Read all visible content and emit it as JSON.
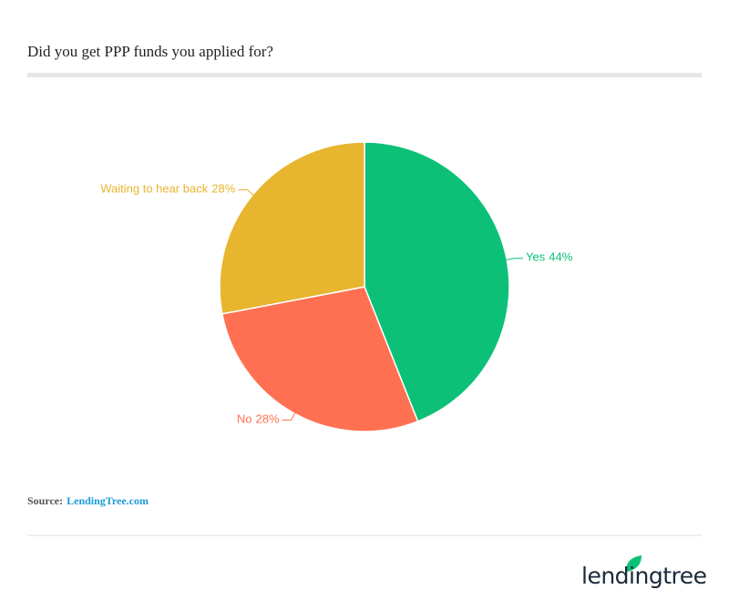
{
  "chart_data": {
    "type": "pie",
    "title": "Did you get PPP funds you applied for?",
    "categories": [
      "Yes",
      "No",
      "Waiting to hear back"
    ],
    "values": [
      44,
      28,
      28
    ],
    "value_labels": [
      "44%",
      "28%",
      "28%"
    ],
    "colors": [
      "#0cc177",
      "#ff7052",
      "#e8b52f"
    ]
  },
  "source": {
    "label": "Source:",
    "link": "LendingTree.com"
  },
  "logo": "lendingtree"
}
